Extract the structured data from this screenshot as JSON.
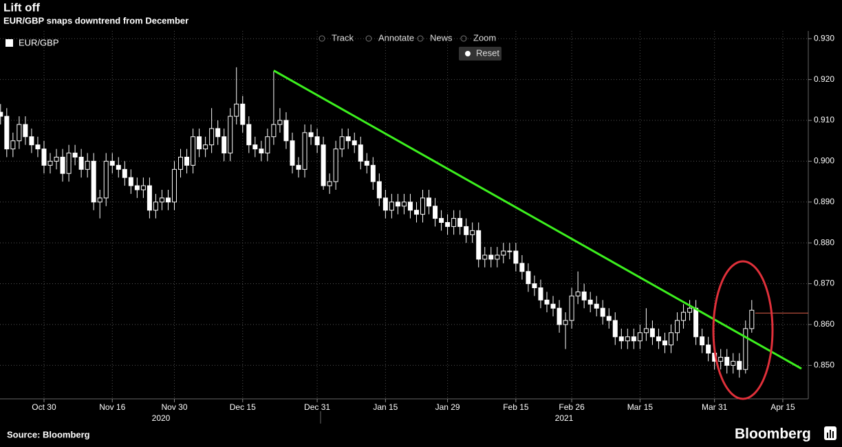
{
  "title": "Lift off",
  "subtitle": "EUR/GBP snaps downtrend from December",
  "toolbar": [
    "Track",
    "Annotate",
    "News",
    "Zoom",
    "Reset"
  ],
  "source": "Source: Bloomberg",
  "brand": "Bloomberg",
  "chart_data": {
    "type": "candlestick",
    "categories": [
      null,
      null,
      null,
      null,
      null,
      null,
      null,
      "Oct 30",
      null,
      null,
      null,
      null,
      null,
      null,
      null,
      null,
      null,
      null,
      "Nov 16",
      null,
      null,
      null,
      null,
      null,
      null,
      null,
      null,
      null,
      "Nov 30",
      null,
      null,
      null,
      null,
      null,
      null,
      null,
      null,
      null,
      null,
      "Dec 15",
      null,
      null,
      null,
      null,
      null,
      null,
      null,
      null,
      null,
      null,
      null,
      "Dec 31",
      null,
      null,
      null,
      null,
      null,
      null,
      null,
      null,
      null,
      null,
      "Jan 15",
      null,
      null,
      null,
      null,
      null,
      null,
      null,
      null,
      null,
      "Jan 29",
      null,
      null,
      null,
      null,
      null,
      null,
      null,
      null,
      null,
      null,
      "Feb 15",
      null,
      null,
      null,
      null,
      null,
      null,
      null,
      null,
      "Feb 26",
      null,
      null,
      null,
      null,
      null,
      null,
      null,
      null,
      null,
      null,
      "Mar 15",
      null,
      null,
      null,
      null,
      null,
      null,
      null,
      null,
      null,
      null,
      null,
      "Mar 31",
      null,
      null,
      null,
      null,
      null,
      null,
      null,
      null,
      null,
      null,
      "Apr 15",
      null,
      null,
      null,
      null
    ],
    "year_labels": [
      "2020",
      "2021"
    ],
    "series": [
      {
        "name": "EUR/GBP",
        "color": "#ffffff",
        "open": [
          0.912,
          0.911,
          0.903,
          0.905,
          0.909,
          0.906,
          0.904,
          0.903,
          0.899,
          0.9,
          0.901,
          0.897,
          0.902,
          0.901,
          0.898,
          0.9,
          0.89,
          0.891,
          0.9,
          0.899,
          0.898,
          0.896,
          0.894,
          0.893,
          0.894,
          0.888,
          0.89,
          0.891,
          0.89,
          0.898,
          0.901,
          0.899,
          0.906,
          0.903,
          0.904,
          0.908,
          0.906,
          0.902,
          0.911,
          0.914,
          0.909,
          0.904,
          0.903,
          0.902,
          0.906,
          0.909,
          0.91,
          0.905,
          0.899,
          0.898,
          0.907,
          0.906,
          0.904,
          0.894,
          0.895,
          0.903,
          0.906,
          0.905,
          0.904,
          0.9,
          0.899,
          0.895,
          0.891,
          0.888,
          0.89,
          0.889,
          0.89,
          0.888,
          0.887,
          0.891,
          0.889,
          0.886,
          0.885,
          0.884,
          0.886,
          0.884,
          0.882,
          0.883,
          0.876,
          0.877,
          0.876,
          0.877,
          0.878,
          0.878,
          0.875,
          0.873,
          0.87,
          0.869,
          0.866,
          0.865,
          0.864,
          0.86,
          0.861,
          0.867,
          0.868,
          0.866,
          0.865,
          0.864,
          0.862,
          0.861,
          0.857,
          0.856,
          0.857,
          0.856,
          0.858,
          0.859,
          0.857,
          0.856,
          0.855,
          0.858,
          0.861,
          0.863,
          0.864,
          0.857,
          0.855,
          0.853,
          0.851,
          0.852,
          0.85,
          0.851,
          0.849,
          0.859,
          null,
          null,
          null,
          null,
          null,
          null,
          null,
          null,
          null
        ],
        "high": [
          0.914,
          0.913,
          0.907,
          0.911,
          0.911,
          0.908,
          0.906,
          0.905,
          0.902,
          0.903,
          0.903,
          0.904,
          0.904,
          0.903,
          0.902,
          0.902,
          0.893,
          0.902,
          0.902,
          0.901,
          0.9,
          0.898,
          0.896,
          0.896,
          0.896,
          0.892,
          0.893,
          0.893,
          0.9,
          0.903,
          0.903,
          0.908,
          0.908,
          0.906,
          0.913,
          0.91,
          0.908,
          0.913,
          0.923,
          0.916,
          0.911,
          0.906,
          0.905,
          0.908,
          0.922,
          0.913,
          0.912,
          0.907,
          0.901,
          0.909,
          0.909,
          0.908,
          0.906,
          0.897,
          0.905,
          0.908,
          0.908,
          0.907,
          0.906,
          0.902,
          0.901,
          0.897,
          0.893,
          0.892,
          0.892,
          0.892,
          0.892,
          0.89,
          0.893,
          0.893,
          0.891,
          0.888,
          0.887,
          0.888,
          0.888,
          0.886,
          0.885,
          0.885,
          0.879,
          0.879,
          0.879,
          0.88,
          0.88,
          0.88,
          0.877,
          0.875,
          0.872,
          0.871,
          0.868,
          0.867,
          0.866,
          0.863,
          0.869,
          0.873,
          0.87,
          0.868,
          0.867,
          0.866,
          0.864,
          0.863,
          0.859,
          0.859,
          0.859,
          0.86,
          0.864,
          0.861,
          0.859,
          0.858,
          0.86,
          0.863,
          0.865,
          0.866,
          0.866,
          0.859,
          0.857,
          0.855,
          0.854,
          0.854,
          0.853,
          0.853,
          0.861,
          0.866,
          null,
          null,
          null,
          null,
          null,
          null,
          null,
          null,
          null
        ],
        "low": [
          0.909,
          0.901,
          0.901,
          0.903,
          0.904,
          0.902,
          0.901,
          0.897,
          0.897,
          0.898,
          0.895,
          0.895,
          0.899,
          0.896,
          0.896,
          0.888,
          0.886,
          0.889,
          0.897,
          0.896,
          0.894,
          0.892,
          0.891,
          0.891,
          0.886,
          0.886,
          0.888,
          0.888,
          0.888,
          0.896,
          0.897,
          0.897,
          0.901,
          0.901,
          0.902,
          0.904,
          0.9,
          0.9,
          0.909,
          0.907,
          0.902,
          0.901,
          0.9,
          0.9,
          0.904,
          0.907,
          0.903,
          0.897,
          0.896,
          0.896,
          0.904,
          0.902,
          0.893,
          0.892,
          0.893,
          0.901,
          0.903,
          0.902,
          0.898,
          0.897,
          0.893,
          0.889,
          0.886,
          0.886,
          0.887,
          0.887,
          0.886,
          0.885,
          0.885,
          0.887,
          0.884,
          0.883,
          0.882,
          0.882,
          0.882,
          0.88,
          0.88,
          0.874,
          0.874,
          0.874,
          0.874,
          0.875,
          0.876,
          0.873,
          0.871,
          0.868,
          0.867,
          0.864,
          0.863,
          0.862,
          0.858,
          0.854,
          0.859,
          0.865,
          0.864,
          0.863,
          0.862,
          0.86,
          0.859,
          0.855,
          0.854,
          0.854,
          0.854,
          0.854,
          0.856,
          0.855,
          0.854,
          0.853,
          0.853,
          0.856,
          0.859,
          0.861,
          0.855,
          0.853,
          0.851,
          0.849,
          0.849,
          0.848,
          0.848,
          0.847,
          0.848,
          0.858,
          null,
          null,
          null,
          null,
          null,
          null,
          null,
          null,
          null
        ],
        "close": [
          0.911,
          0.903,
          0.905,
          0.909,
          0.906,
          0.904,
          0.903,
          0.899,
          0.9,
          0.901,
          0.897,
          0.902,
          0.901,
          0.898,
          0.9,
          0.89,
          0.891,
          0.9,
          0.899,
          0.898,
          0.896,
          0.894,
          0.893,
          0.894,
          0.888,
          0.89,
          0.891,
          0.89,
          0.898,
          0.901,
          0.899,
          0.906,
          0.903,
          0.904,
          0.908,
          0.906,
          0.902,
          0.911,
          0.914,
          0.909,
          0.904,
          0.903,
          0.902,
          0.906,
          0.909,
          0.91,
          0.905,
          0.899,
          0.898,
          0.907,
          0.906,
          0.904,
          0.894,
          0.895,
          0.903,
          0.906,
          0.905,
          0.904,
          0.9,
          0.899,
          0.895,
          0.891,
          0.888,
          0.89,
          0.889,
          0.89,
          0.888,
          0.887,
          0.891,
          0.889,
          0.886,
          0.885,
          0.884,
          0.886,
          0.884,
          0.882,
          0.883,
          0.876,
          0.877,
          0.876,
          0.877,
          0.878,
          0.878,
          0.875,
          0.873,
          0.87,
          0.869,
          0.866,
          0.865,
          0.864,
          0.86,
          0.861,
          0.867,
          0.868,
          0.866,
          0.865,
          0.864,
          0.862,
          0.861,
          0.857,
          0.856,
          0.857,
          0.856,
          0.858,
          0.859,
          0.857,
          0.856,
          0.855,
          0.858,
          0.861,
          0.863,
          0.864,
          0.857,
          0.855,
          0.853,
          0.851,
          0.852,
          0.85,
          0.851,
          0.849,
          0.859,
          0.8635,
          null,
          null,
          null,
          null,
          null,
          null,
          null,
          null,
          null
        ]
      }
    ],
    "trendline": {
      "color": "#3cf01e",
      "points": [
        {
          "index": 44,
          "value": 0.9222
        },
        {
          "index": 129,
          "value": 0.8492
        }
      ]
    },
    "last_price_line": {
      "value": 0.8628,
      "color": "#e0604a"
    },
    "ylim": [
      0.8418,
      0.9319
    ],
    "yticks": [
      {
        "value": 0.85,
        "label": "0.850"
      },
      {
        "value": 0.86,
        "label": "0.860"
      },
      {
        "value": 0.87,
        "label": "0.870"
      },
      {
        "value": 0.88,
        "label": "0.880"
      },
      {
        "value": 0.89,
        "label": "0.890"
      },
      {
        "value": 0.9,
        "label": "0.900"
      },
      {
        "value": 0.91,
        "label": "0.910"
      },
      {
        "value": 0.92,
        "label": "0.920"
      },
      {
        "value": 0.93,
        "label": "0.930"
      }
    ],
    "grid": true,
    "y_axis_side": "right"
  }
}
